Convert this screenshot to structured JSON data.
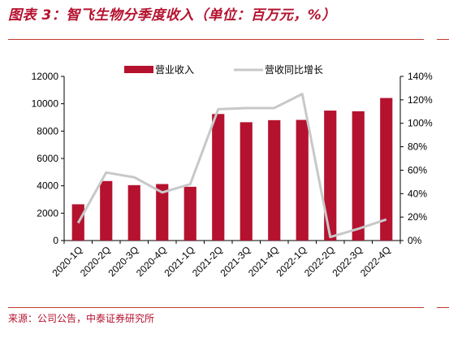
{
  "header": {
    "title": "图表 3：智飞生物分季度收入（单位：百万元，%）"
  },
  "footer": {
    "source": "来源：公司公告，中泰证券研究所"
  },
  "chart_data": {
    "type": "bar",
    "categories": [
      "2020-1Q",
      "2020-2Q",
      "2020-3Q",
      "2020-4Q",
      "2021-1Q",
      "2021-2Q",
      "2021-3Q",
      "2021-4Q",
      "2022-1Q",
      "2022-2Q",
      "2022-3Q",
      "2022-4Q"
    ],
    "series": [
      {
        "name": "营业收入",
        "type": "bar",
        "axis": "left",
        "color": "#b5122f",
        "values": [
          2650,
          4350,
          4050,
          4130,
          3930,
          9250,
          8650,
          8800,
          8820,
          9500,
          9450,
          10420
        ]
      },
      {
        "name": "营收同比增长",
        "type": "line",
        "axis": "right",
        "color": "#c8c8c8",
        "values": [
          15,
          58,
          54,
          41,
          48,
          112,
          113,
          113,
          125,
          3,
          10,
          18
        ]
      }
    ],
    "y_left": {
      "ylim": [
        0,
        12000
      ],
      "ticks": [
        "0",
        "2000",
        "4000",
        "6000",
        "8000",
        "10000",
        "12000"
      ]
    },
    "y_right": {
      "ylim": [
        0,
        140
      ],
      "ticks": [
        "0%",
        "20%",
        "40%",
        "60%",
        "80%",
        "100%",
        "120%",
        "140%"
      ]
    },
    "legend": "top-center",
    "grid": false
  }
}
